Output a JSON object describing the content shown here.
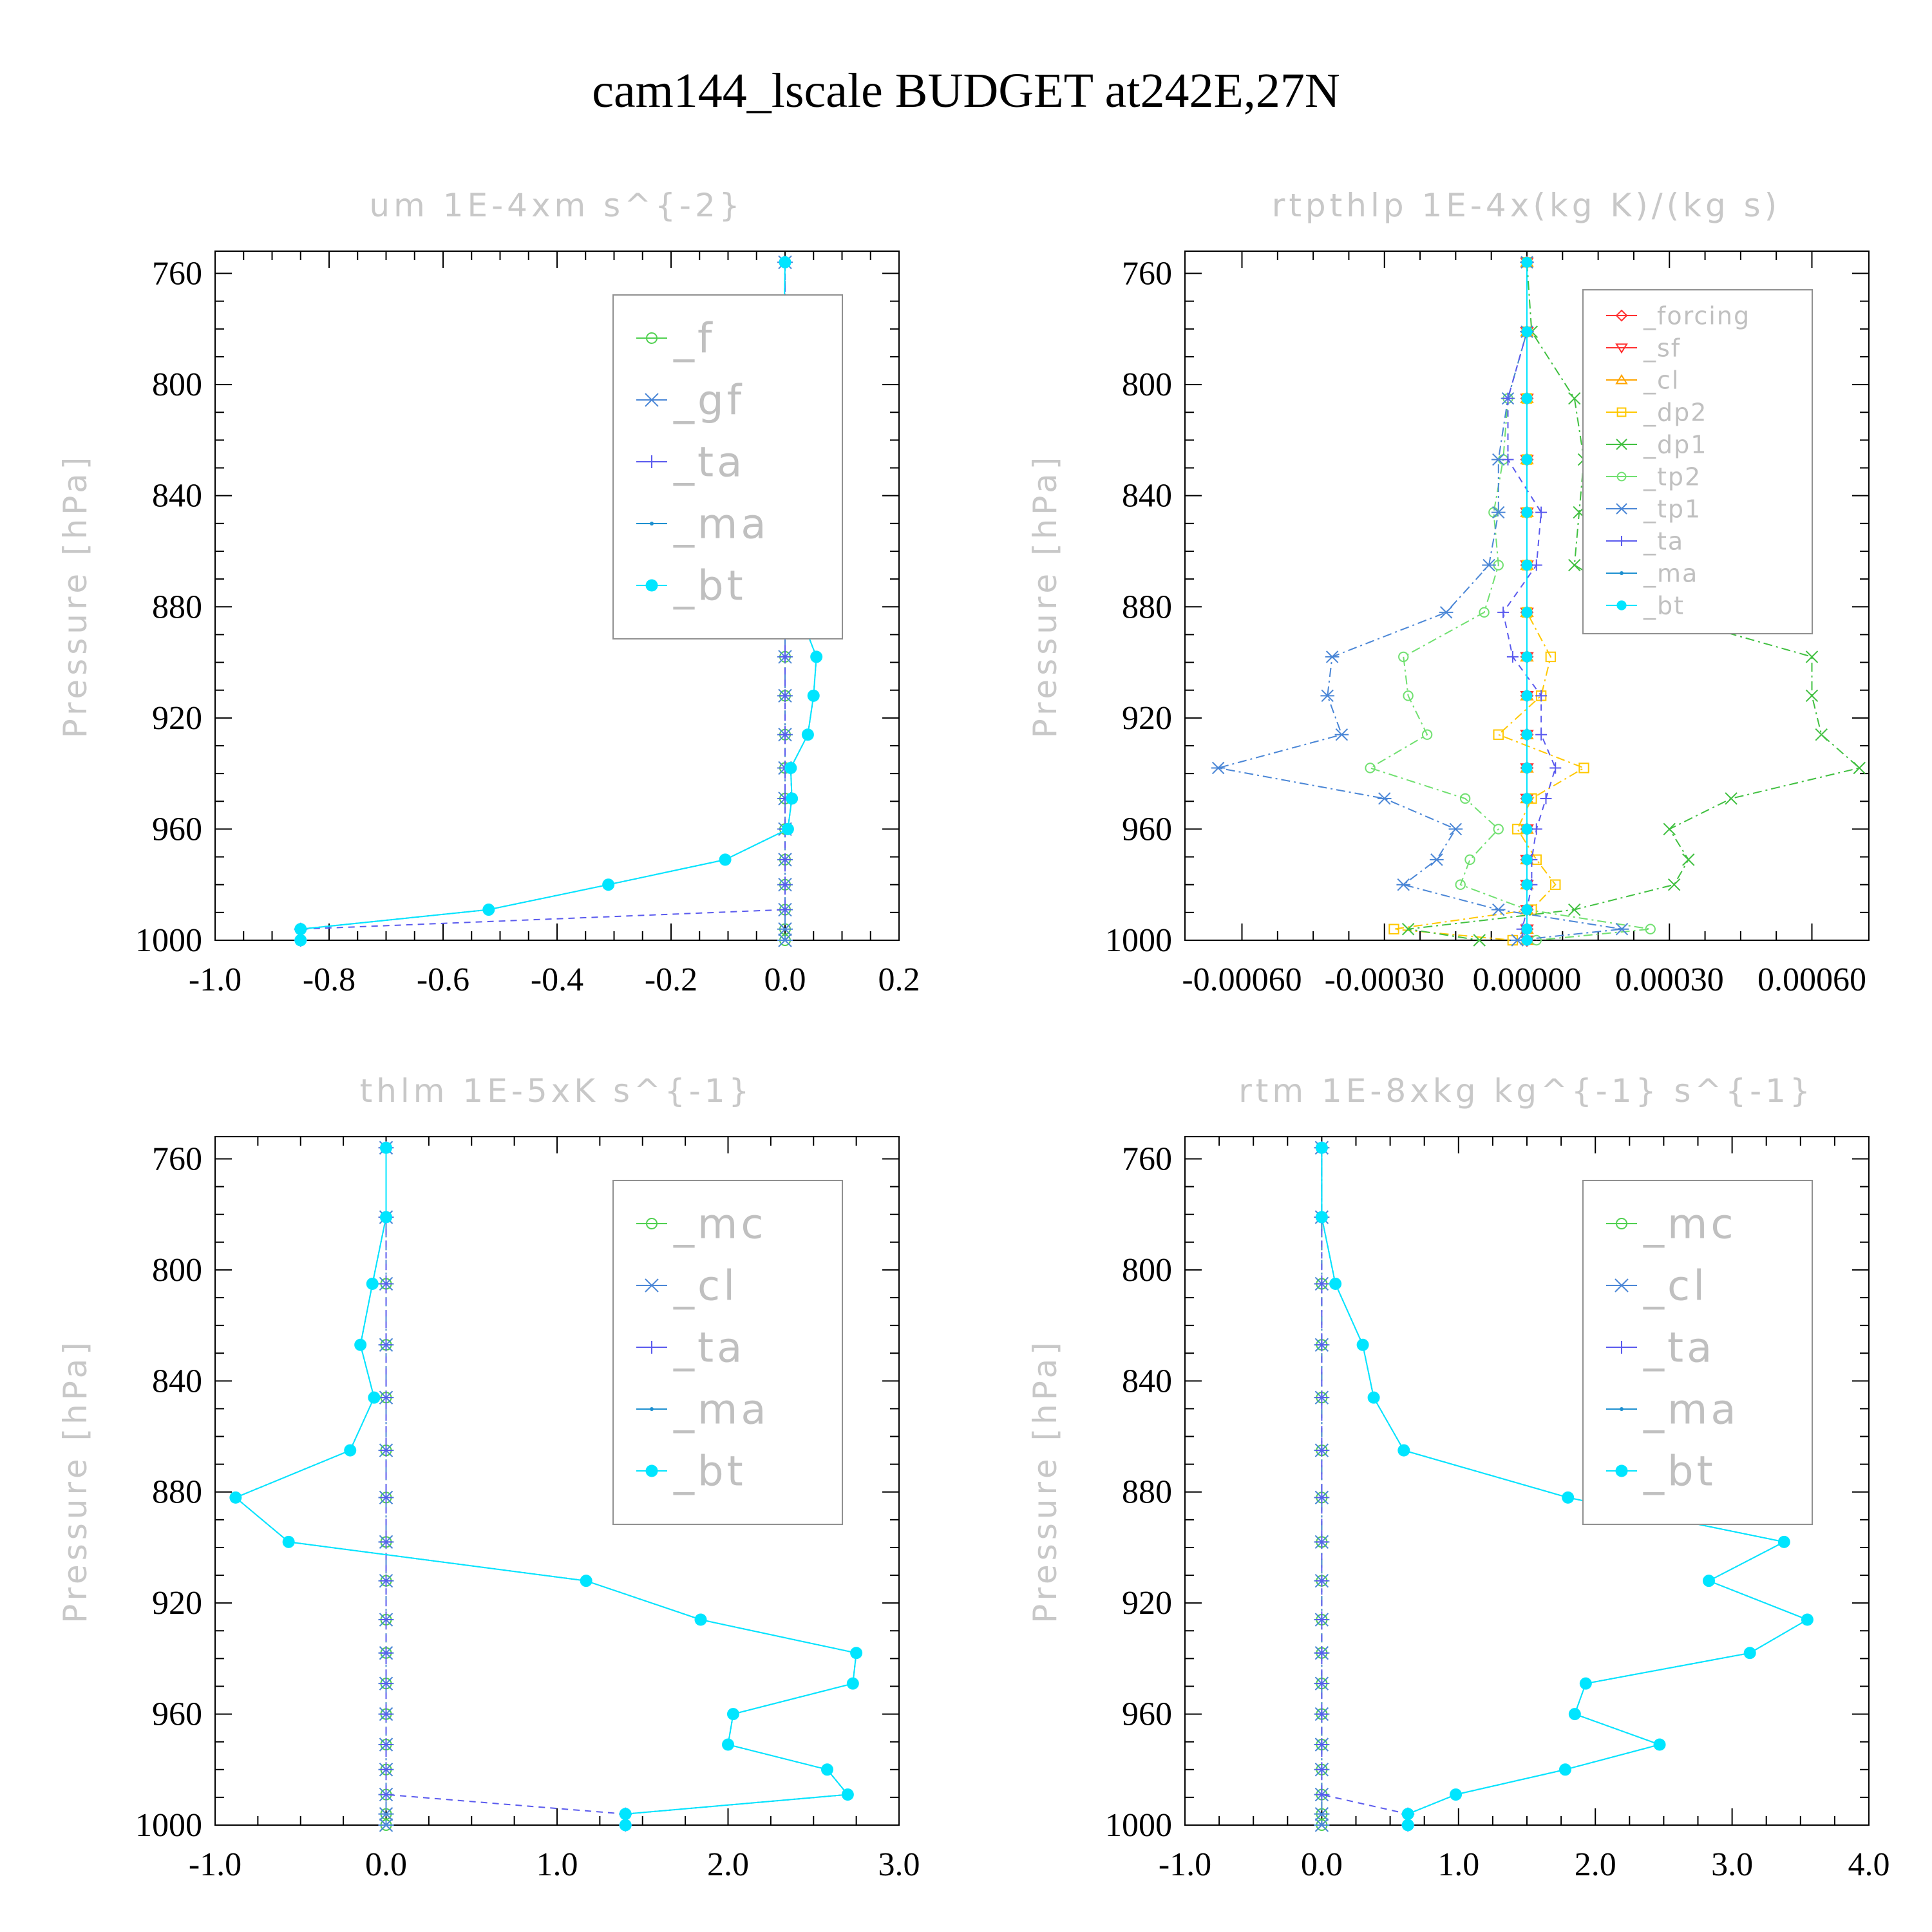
{
  "main_title": "cam144_lscale  BUDGET at242E,27N",
  "colors": {
    "forcing": "#ff3030",
    "sf": "#ff3030",
    "cl_orange": "#ffa500",
    "dp2": "#ffc800",
    "dp1": "#40c040",
    "tp2": "#70e070",
    "tp1": "#4a86d6",
    "ta": "#5a5aee",
    "ma": "#1e90d0",
    "bt": "#00e5ff",
    "green": "#50d050",
    "cl_blue": "#4a86d6"
  },
  "chart_data": [
    {
      "type": "line",
      "title": "um   1E-4xm s^{-2}",
      "ylabel": "Pressure [hPa]",
      "ylim": [
        752,
        1000
      ],
      "xlim": [
        -1.0,
        0.2
      ],
      "xticks": [
        -1.0,
        -0.8,
        -0.6,
        -0.4,
        -0.2,
        0.0,
        0.2
      ],
      "xtick_labels": [
        "-1.0",
        "-0.8",
        "-0.6",
        "-0.4",
        "-0.2",
        "0.0",
        "0.2"
      ],
      "yticks": [
        760,
        800,
        840,
        880,
        920,
        960,
        1000
      ],
      "legend": "top-right",
      "pressure": [
        756,
        781,
        805,
        827,
        846,
        865,
        882,
        898,
        912,
        926,
        938,
        949,
        960,
        971,
        980,
        989,
        996,
        1000
      ],
      "series": [
        {
          "name": "_f",
          "color": "#50d050",
          "marker": "circle",
          "values": [
            0,
            0,
            0,
            0,
            0,
            0,
            0,
            0,
            0,
            0,
            0,
            0,
            0,
            0,
            0,
            0,
            0,
            0
          ]
        },
        {
          "name": "_gf",
          "color": "#4a86d6",
          "marker": "star",
          "values": [
            0,
            0,
            0,
            0,
            0,
            0,
            0,
            0,
            0,
            0,
            0,
            0,
            0,
            0,
            0,
            0,
            0,
            0
          ]
        },
        {
          "name": "_ta",
          "color": "#5a5aee",
          "marker": "plus",
          "values": [
            0,
            0,
            0,
            0,
            0,
            0,
            0,
            0,
            0,
            0,
            0,
            0,
            0,
            0,
            0,
            0,
            -0.85,
            -0.85
          ]
        },
        {
          "name": "_ma",
          "color": "#1e90d0",
          "marker": "dot",
          "values": [
            0,
            -0.002,
            -0.004,
            0,
            -0.002,
            0.003,
            0.025,
            0.055,
            0.05,
            0.04,
            0.01,
            0.012,
            0.005,
            -0.105,
            -0.31,
            -0.52,
            -0.85,
            -0.85
          ]
        },
        {
          "name": "_bt",
          "color": "#00e5ff",
          "marker": "filled",
          "values": [
            0,
            -0.002,
            -0.004,
            0,
            -0.002,
            0.003,
            0.025,
            0.055,
            0.05,
            0.04,
            0.01,
            0.012,
            0.005,
            -0.105,
            -0.31,
            -0.52,
            -0.85,
            -0.85
          ]
        }
      ]
    },
    {
      "type": "line",
      "title": "rtpthlp   1E-4x(kg K)/(kg s)",
      "ylabel": "Pressure [hPa]",
      "ylim": [
        752,
        1000
      ],
      "xlim": [
        -0.00072,
        0.00072
      ],
      "xticks": [
        -0.0006,
        -0.0003,
        0.0,
        0.0003,
        0.0006
      ],
      "xtick_labels": [
        "-0.00060",
        "-0.00030",
        "0.00000",
        "0.00030",
        "0.00060"
      ],
      "yticks": [
        760,
        800,
        840,
        880,
        920,
        960,
        1000
      ],
      "legend": "top-right",
      "pressure": [
        756,
        781,
        805,
        827,
        846,
        865,
        882,
        898,
        912,
        926,
        938,
        949,
        960,
        971,
        980,
        989,
        996,
        1000
      ],
      "series": [
        {
          "name": "_forcing",
          "color": "#ff3030",
          "marker": "diamond",
          "values": [
            0,
            0,
            0,
            0,
            0,
            0,
            0,
            0,
            0,
            0,
            0,
            0,
            0,
            0,
            0,
            0,
            0,
            0
          ]
        },
        {
          "name": "_sf",
          "color": "#ff3030",
          "marker": "tri-down",
          "values": [
            0,
            0,
            0,
            0,
            0,
            0,
            0,
            0,
            0,
            0,
            0,
            0,
            0,
            0,
            0,
            0,
            0,
            0
          ]
        },
        {
          "name": "_cl",
          "color": "#ffa500",
          "marker": "tri-up",
          "values": [
            0,
            0,
            0,
            0,
            0,
            0,
            0,
            0,
            0,
            0,
            0,
            0,
            0,
            0,
            0,
            0,
            0,
            0
          ]
        },
        {
          "name": "_dp2",
          "color": "#ffc800",
          "marker": "square",
          "values": [
            0,
            0,
            0,
            0,
            0,
            0,
            0,
            5e-05,
            3e-05,
            -6e-05,
            0.00012,
            1e-05,
            -2e-05,
            2e-05,
            6e-05,
            1e-05,
            -0.00028,
            -3e-05
          ]
        },
        {
          "name": "_dp1",
          "color": "#40c040",
          "marker": "x",
          "values": [
            0,
            1e-05,
            0.0001,
            0.00012,
            0.00011,
            0.0001,
            0.00027,
            0.0006,
            0.0006,
            0.00062,
            0.0007,
            0.00043,
            0.0003,
            0.00034,
            0.00031,
            0.0001,
            -0.00025,
            -0.0001
          ]
        },
        {
          "name": "_tp2",
          "color": "#70e070",
          "marker": "circle",
          "values": [
            0,
            0,
            -4e-05,
            -5e-05,
            -7e-05,
            -6e-05,
            -9e-05,
            -0.00026,
            -0.00025,
            -0.00021,
            -0.00033,
            -0.00013,
            -6e-05,
            -0.00012,
            -0.00014,
            0,
            0.00026,
            2e-05
          ]
        },
        {
          "name": "_tp1",
          "color": "#4a86d6",
          "marker": "star",
          "values": [
            0,
            0,
            -4e-05,
            -6e-05,
            -6e-05,
            -8e-05,
            -0.00017,
            -0.00041,
            -0.00042,
            -0.00039,
            -0.00065,
            -0.0003,
            -0.00015,
            -0.00019,
            -0.00026,
            -6e-05,
            0.0002,
            -2e-05
          ]
        },
        {
          "name": "_ta",
          "color": "#5a5aee",
          "marker": "plus",
          "values": [
            0,
            0,
            -4e-05,
            -4e-05,
            3e-05,
            2e-05,
            -5e-05,
            -3e-05,
            3e-05,
            3e-05,
            6e-05,
            4e-05,
            2e-05,
            1e-05,
            1e-05,
            0,
            -1e-05,
            0
          ]
        },
        {
          "name": "_ma",
          "color": "#1e90d0",
          "marker": "dot",
          "values": [
            0,
            0,
            0,
            0,
            0,
            0,
            0,
            0,
            0,
            0,
            0,
            0,
            0,
            0,
            0,
            0,
            0,
            0
          ]
        },
        {
          "name": "_bt",
          "color": "#00e5ff",
          "marker": "filled",
          "values": [
            0,
            0,
            0,
            0,
            0,
            0,
            0,
            0,
            0,
            0,
            0,
            0,
            0,
            0,
            0,
            0,
            0,
            0
          ]
        }
      ]
    },
    {
      "type": "line",
      "title": "thlm   1E-5xK s^{-1}",
      "ylabel": "Pressure [hPa]",
      "ylim": [
        752,
        1000
      ],
      "xlim": [
        -1.0,
        3.0
      ],
      "xticks": [
        -1.0,
        0.0,
        1.0,
        2.0,
        3.0
      ],
      "xtick_labels": [
        "-1.0",
        "0.0",
        "1.0",
        "2.0",
        "3.0"
      ],
      "yticks": [
        760,
        800,
        840,
        880,
        920,
        960,
        1000
      ],
      "legend": "top-right",
      "pressure": [
        756,
        781,
        805,
        827,
        846,
        865,
        882,
        898,
        912,
        926,
        938,
        949,
        960,
        971,
        980,
        989,
        996,
        1000
      ],
      "series": [
        {
          "name": "_mc",
          "color": "#50d050",
          "marker": "circle",
          "values": [
            0,
            0,
            0,
            0,
            0,
            0,
            0,
            0,
            0,
            0,
            0,
            0,
            0,
            0,
            0,
            0,
            0,
            0
          ]
        },
        {
          "name": "_cl",
          "color": "#4a86d6",
          "marker": "star",
          "values": [
            0,
            0,
            0,
            0,
            0,
            0,
            0,
            0,
            0,
            0,
            0,
            0,
            0,
            0,
            0,
            0,
            0,
            0
          ]
        },
        {
          "name": "_ta",
          "color": "#5a5aee",
          "marker": "plus",
          "values": [
            0,
            0,
            0,
            0,
            0,
            0,
            0,
            0,
            0,
            0,
            0,
            0,
            0,
            0,
            0,
            0,
            1.4,
            1.4
          ]
        },
        {
          "name": "_ma",
          "color": "#1e90d0",
          "marker": "dot",
          "values": [
            0,
            0,
            -0.08,
            -0.15,
            -0.07,
            -0.21,
            -0.88,
            -0.57,
            1.17,
            1.84,
            2.75,
            2.73,
            2.03,
            2.0,
            2.58,
            2.7,
            1.4,
            1.4
          ]
        },
        {
          "name": "_bt",
          "color": "#00e5ff",
          "marker": "filled",
          "values": [
            0,
            0,
            -0.08,
            -0.15,
            -0.07,
            -0.21,
            -0.88,
            -0.57,
            1.17,
            1.84,
            2.75,
            2.73,
            2.03,
            2.0,
            2.58,
            2.7,
            1.4,
            1.4
          ]
        }
      ]
    },
    {
      "type": "line",
      "title": "rtm   1E-8xkg kg^{-1} s^{-1}",
      "ylabel": "Pressure [hPa]",
      "ylim": [
        752,
        1000
      ],
      "xlim": [
        -1.0,
        4.0
      ],
      "xticks": [
        -1.0,
        0.0,
        1.0,
        2.0,
        3.0,
        4.0
      ],
      "xtick_labels": [
        "-1.0",
        "0.0",
        "1.0",
        "2.0",
        "3.0",
        "4.0"
      ],
      "yticks": [
        760,
        800,
        840,
        880,
        920,
        960,
        1000
      ],
      "legend": "top-right",
      "pressure": [
        756,
        781,
        805,
        827,
        846,
        865,
        882,
        898,
        912,
        926,
        938,
        949,
        960,
        971,
        980,
        989,
        996,
        1000
      ],
      "series": [
        {
          "name": "_mc",
          "color": "#50d050",
          "marker": "circle",
          "values": [
            0,
            0,
            0,
            0,
            0,
            0,
            0,
            0,
            0,
            0,
            0,
            0,
            0,
            0,
            0,
            0,
            0,
            0
          ]
        },
        {
          "name": "_cl",
          "color": "#4a86d6",
          "marker": "star",
          "values": [
            0,
            0,
            0,
            0,
            0,
            0,
            0,
            0,
            0,
            0,
            0,
            0,
            0,
            0,
            0,
            0,
            0,
            0
          ]
        },
        {
          "name": "_ta",
          "color": "#5a5aee",
          "marker": "plus",
          "values": [
            0,
            0,
            0,
            0,
            0,
            0,
            0,
            0,
            0,
            0,
            0,
            0,
            0,
            0,
            0,
            0,
            0.63,
            0.63
          ]
        },
        {
          "name": "_ma",
          "color": "#1e90d0",
          "marker": "dot",
          "values": [
            0,
            0,
            0.1,
            0.3,
            0.38,
            0.6,
            1.8,
            3.38,
            2.83,
            3.55,
            3.13,
            1.93,
            1.85,
            2.47,
            1.78,
            0.98,
            0.63,
            0.63
          ]
        },
        {
          "name": "_bt",
          "color": "#00e5ff",
          "marker": "filled",
          "values": [
            0,
            0,
            0.1,
            0.3,
            0.38,
            0.6,
            1.8,
            3.38,
            2.83,
            3.55,
            3.13,
            1.93,
            1.85,
            2.47,
            1.78,
            0.98,
            0.63,
            0.63
          ]
        }
      ]
    }
  ]
}
